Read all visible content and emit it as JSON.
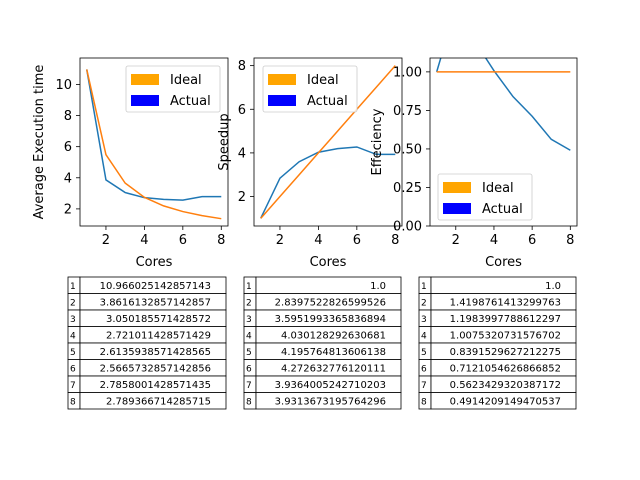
{
  "chart_data": [
    {
      "type": "line",
      "xlabel": "Cores",
      "ylabel": "Average Execution time",
      "x": [
        1,
        2,
        3,
        4,
        5,
        6,
        7,
        8
      ],
      "xticks": [
        "2",
        "4",
        "6",
        "8"
      ],
      "yticks": [
        "2",
        "4",
        "6",
        "8",
        "10"
      ],
      "xlim": [
        0.65,
        8.35
      ],
      "ylim": [
        0.9,
        11.7
      ],
      "series": [
        {
          "name": "Actual",
          "color": "#1f77b4",
          "values": [
            10.966025142857143,
            3.8616132857142857,
            3.050185571428572,
            2.721011428571429,
            2.6135938571428565,
            2.5665732857142856,
            2.7858001428571435,
            2.789366714285715
          ]
        },
        {
          "name": "Ideal",
          "color": "#ff7f0e",
          "values": [
            10.966025142857143,
            5.483012571428572,
            3.655341714285714,
            2.741506285714286,
            2.1932050285714286,
            1.8276708571428573,
            1.5665750204081632,
            1.370753142857143
          ]
        }
      ],
      "legend": {
        "placement": "top-right",
        "entries": [
          {
            "label": "Ideal",
            "color": "#ffa500"
          },
          {
            "label": "Actual",
            "color": "#0000ff"
          }
        ]
      },
      "table": [
        [
          "1",
          "10.966025142857143"
        ],
        [
          "2",
          "3.8616132857142857"
        ],
        [
          "3",
          "3.050185571428572"
        ],
        [
          "4",
          "2.721011428571429"
        ],
        [
          "5",
          "2.6135938571428565"
        ],
        [
          "6",
          "2.5665732857142856"
        ],
        [
          "7",
          "2.7858001428571435"
        ],
        [
          "8",
          "2.789366714285715"
        ]
      ]
    },
    {
      "type": "line",
      "xlabel": "Cores",
      "ylabel": "Speedup",
      "x": [
        1,
        2,
        3,
        4,
        5,
        6,
        7,
        8
      ],
      "xticks": [
        "2",
        "4",
        "6",
        "8"
      ],
      "yticks": [
        "2",
        "4",
        "6",
        "8"
      ],
      "xlim": [
        0.65,
        8.35
      ],
      "ylim": [
        0.65,
        8.35
      ],
      "series": [
        {
          "name": "Actual",
          "color": "#1f77b4",
          "values": [
            1.0,
            2.8397522826599526,
            3.5951993365836894,
            4.030128292630681,
            4.195764813606138,
            4.272632776120111,
            3.9364005242710203,
            3.9313673195764296
          ]
        },
        {
          "name": "Ideal",
          "color": "#ff7f0e",
          "values": [
            1,
            2,
            3,
            4,
            5,
            6,
            7,
            8
          ]
        }
      ],
      "legend": {
        "placement": "top-left",
        "entries": [
          {
            "label": "Ideal",
            "color": "#ffa500"
          },
          {
            "label": "Actual",
            "color": "#0000ff"
          }
        ]
      },
      "table": [
        [
          "1",
          "1.0"
        ],
        [
          "2",
          "2.8397522826599526"
        ],
        [
          "3",
          "3.5951993365836894"
        ],
        [
          "4",
          "4.030128292630681"
        ],
        [
          "5",
          "4.195764813606138"
        ],
        [
          "6",
          "4.272632776120111"
        ],
        [
          "7",
          "3.9364005242710203"
        ],
        [
          "8",
          "3.9313673195764296"
        ]
      ]
    },
    {
      "type": "line",
      "xlabel": "Cores",
      "ylabel": "Effeciency",
      "x": [
        1,
        2,
        3,
        4,
        5,
        6,
        7,
        8
      ],
      "xticks": [
        "2",
        "4",
        "6",
        "8"
      ],
      "yticks": [
        "0.00",
        "0.25",
        "0.50",
        "0.75",
        "1.00"
      ],
      "xlim": [
        0.65,
        8.35
      ],
      "ylim": [
        0,
        1.09
      ],
      "series": [
        {
          "name": "Actual",
          "color": "#1f77b4",
          "values": [
            1.0,
            1.4198761413299763,
            1.1983997788612297,
            1.0075320731576702,
            0.8391529627212275,
            0.7121054626866852,
            0.5623429320387172,
            0.4914209149470537
          ]
        },
        {
          "name": "Ideal",
          "color": "#ff7f0e",
          "values": [
            1,
            1,
            1,
            1,
            1,
            1,
            1,
            1
          ]
        }
      ],
      "legend": {
        "placement": "lower-left",
        "entries": [
          {
            "label": "Ideal",
            "color": "#ffa500"
          },
          {
            "label": "Actual",
            "color": "#0000ff"
          }
        ]
      },
      "table": [
        [
          "1",
          "1.0"
        ],
        [
          "2",
          "1.4198761413299763"
        ],
        [
          "3",
          "1.1983997788612297"
        ],
        [
          "4",
          "1.0075320731576702"
        ],
        [
          "5",
          "0.8391529627212275"
        ],
        [
          "6",
          "0.7121054626866852"
        ],
        [
          "7",
          "0.5623429320387172"
        ],
        [
          "8",
          "0.4914209149470537"
        ]
      ]
    }
  ]
}
